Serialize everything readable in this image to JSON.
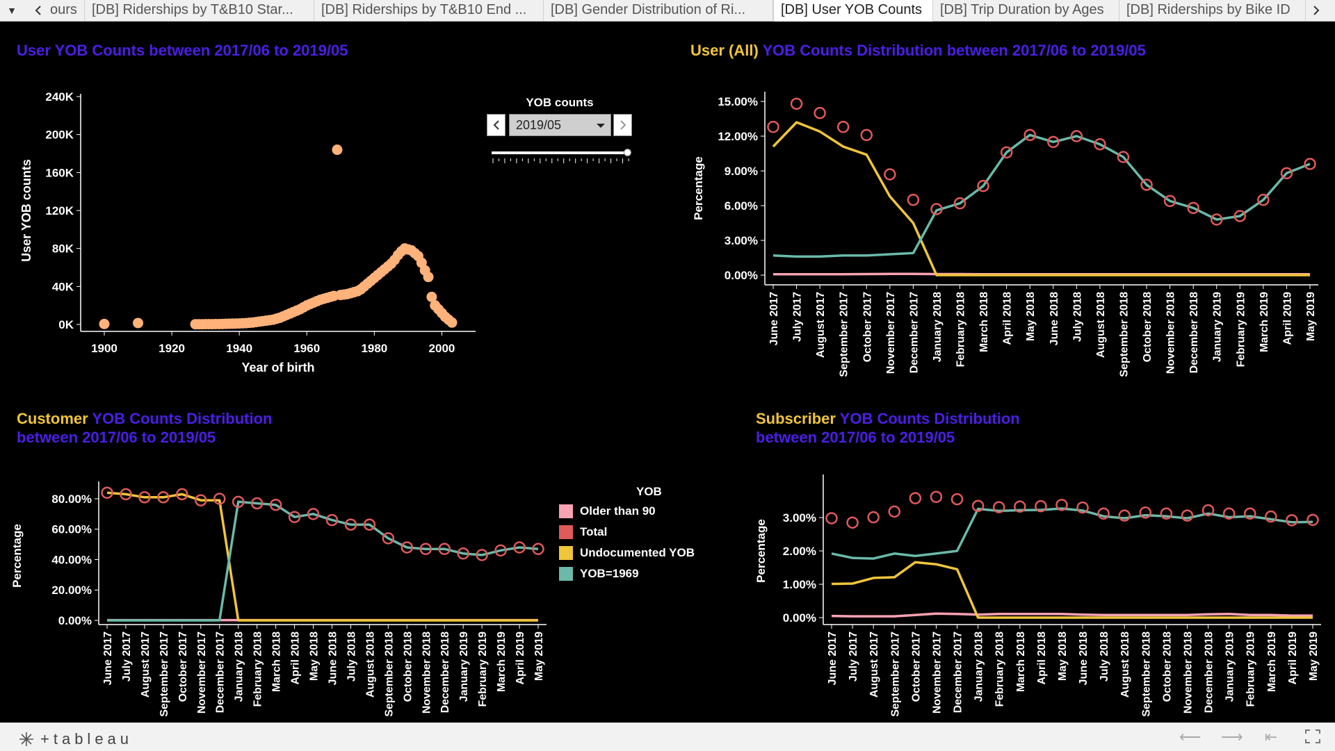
{
  "tabs": {
    "items": [
      "ours",
      "[DB] Riderships by T&B10 Star...",
      "[DB] Riderships by T&B10 End ...",
      "[DB] Gender Distribution of Ri...",
      "[DB] User YOB Counts",
      "[DB] Trip Duration by Ages",
      "[DB] Riderships by Bike ID"
    ]
  },
  "titles": {
    "scatter": "User YOB Counts between 2017/06 to 2019/05",
    "user_hl": "User (All)",
    "user_rest": " YOB Counts Distribution between 2017/06 to 2019/05",
    "customer_hl": "Customer",
    "customer_rest": " YOB Counts Distribution",
    "customer_line2": "between 2017/06 to 2019/05",
    "subscriber_hl": "Subscriber",
    "subscriber_rest": " YOB Counts Distribution",
    "subscriber_line2": "between 2017/06 to 2019/05"
  },
  "filter": {
    "label": "YOB counts",
    "value": "2019/05",
    "level": 1.0
  },
  "legend": {
    "title": "YOB",
    "items": [
      {
        "label": "Older than 90",
        "color": "#f9a2b2"
      },
      {
        "label": "Total",
        "color": "#e05a5a"
      },
      {
        "label": "Undocumented YOB",
        "color": "#f0c53a"
      },
      {
        "label": "YOB=1969",
        "color": "#6ab9a9"
      }
    ]
  },
  "colors": {
    "scatter": "#ffb27a",
    "older": "#f9a2b2",
    "total": "#e05a5a",
    "undoc": "#f0c53a",
    "yob1969": "#6ab9a9",
    "title": "#4b1ee6",
    "title_hl": "#f0c53a"
  },
  "chart_data": [
    {
      "type": "scatter",
      "title": "User YOB Counts between 2017/06 to 2019/05",
      "xlabel": "Year of birth",
      "ylabel": "User YOB counts",
      "xlim": [
        1893,
        2010
      ],
      "ylim": [
        0,
        240000
      ],
      "xticks": [
        "1900",
        "1920",
        "1940",
        "1960",
        "1980",
        "2000"
      ],
      "yticks": [
        "0K",
        "40K",
        "80K",
        "120K",
        "160K",
        "200K",
        "240K"
      ],
      "x": [
        1900,
        1910,
        1927,
        1928,
        1929,
        1930,
        1931,
        1932,
        1933,
        1934,
        1935,
        1936,
        1937,
        1938,
        1939,
        1940,
        1941,
        1942,
        1943,
        1944,
        1945,
        1946,
        1947,
        1948,
        1949,
        1950,
        1951,
        1952,
        1953,
        1954,
        1955,
        1956,
        1957,
        1958,
        1959,
        1960,
        1961,
        1962,
        1963,
        1964,
        1965,
        1966,
        1967,
        1968,
        1969,
        1970,
        1971,
        1972,
        1973,
        1974,
        1975,
        1976,
        1977,
        1978,
        1979,
        1980,
        1981,
        1982,
        1983,
        1984,
        1985,
        1986,
        1987,
        1988,
        1989,
        1990,
        1991,
        1992,
        1993,
        1994,
        1995,
        1996,
        1997,
        1998,
        1999,
        2000,
        2001,
        2002,
        2003
      ],
      "y": [
        500,
        1500,
        200,
        200,
        200,
        300,
        300,
        300,
        400,
        400,
        500,
        600,
        700,
        800,
        900,
        1000,
        1200,
        1400,
        1700,
        2000,
        2500,
        3000,
        3500,
        4000,
        4500,
        5000,
        6000,
        7000,
        8500,
        10000,
        11500,
        13000,
        14500,
        16000,
        18000,
        20000,
        21500,
        23000,
        24500,
        26000,
        27000,
        28000,
        29000,
        30000,
        184000,
        31000,
        31500,
        32000,
        33000,
        34000,
        35000,
        37000,
        40000,
        43000,
        46000,
        49000,
        52000,
        55000,
        58000,
        61000,
        64000,
        68000,
        73000,
        77000,
        80000,
        79000,
        78000,
        75000,
        72000,
        65000,
        57000,
        50000,
        29000,
        20000,
        16000,
        12000,
        8000,
        5000,
        2000
      ]
    },
    {
      "type": "line",
      "title": "User (All) YOB Counts Distribution between 2017/06 to 2019/05",
      "ylabel": "Percentage",
      "ylim": [
        0,
        0.15
      ],
      "yticks": [
        "0.00%",
        "3.00%",
        "6.00%",
        "9.00%",
        "12.00%",
        "15.00%"
      ],
      "categories": [
        "June 2017",
        "July 2017",
        "August 2017",
        "September 2017",
        "October 2017",
        "November 2017",
        "December 2017",
        "January 2018",
        "February 2018",
        "March 2018",
        "April 2018",
        "May 2018",
        "June 2018",
        "July 2018",
        "August 2018",
        "September 2018",
        "October 2018",
        "November 2018",
        "December 2018",
        "January 2019",
        "February 2019",
        "March 2019",
        "April 2019",
        "May 2019"
      ],
      "series": [
        {
          "name": "Older than 90",
          "values": [
            0.0008,
            0.0008,
            0.0008,
            0.0008,
            0.0009,
            0.001,
            0.001,
            0.0009,
            0.0009,
            0.0008,
            0.0008,
            0.0008,
            0.0008,
            0.0008,
            0.0008,
            0.0008,
            0.0008,
            0.0008,
            0.0008,
            0.0008,
            0.0008,
            0.0008,
            0.0008,
            0.0008
          ]
        },
        {
          "name": "Total",
          "values": [
            0.128,
            0.148,
            0.14,
            0.128,
            0.121,
            0.087,
            0.065,
            0.057,
            0.062,
            0.077,
            0.106,
            0.121,
            0.115,
            0.12,
            0.113,
            0.102,
            0.078,
            0.064,
            0.058,
            0.048,
            0.051,
            0.065,
            0.088,
            0.096
          ]
        },
        {
          "name": "Undocumented YOB",
          "values": [
            0.111,
            0.132,
            0.124,
            0.111,
            0.104,
            0.068,
            0.045,
            0.0,
            0.0,
            0.0,
            0.0,
            0.0,
            0.0,
            0.0,
            0.0,
            0.0,
            0.0,
            0.0,
            0.0,
            0.0,
            0.0,
            0.0,
            0.0,
            0.0
          ]
        },
        {
          "name": "YOB=1969",
          "values": [
            0.017,
            0.016,
            0.016,
            0.017,
            0.017,
            0.018,
            0.019,
            0.056,
            0.062,
            0.077,
            0.106,
            0.121,
            0.115,
            0.12,
            0.113,
            0.102,
            0.078,
            0.064,
            0.058,
            0.048,
            0.051,
            0.065,
            0.088,
            0.096
          ]
        }
      ]
    },
    {
      "type": "line",
      "title": "Customer YOB Counts Distribution between 2017/06 to 2019/05",
      "ylabel": "Percentage",
      "ylim": [
        0,
        0.85
      ],
      "yticks": [
        "0.00%",
        "20.00%",
        "40.00%",
        "60.00%",
        "80.00%"
      ],
      "categories": [
        "June 2017",
        "July 2017",
        "August 2017",
        "September 2017",
        "October 2017",
        "November 2017",
        "December 2017",
        "January 2018",
        "February 2018",
        "March 2018",
        "April 2018",
        "May 2018",
        "June 2018",
        "July 2018",
        "August 2018",
        "September 2018",
        "October 2018",
        "November 2018",
        "December 2018",
        "January 2019",
        "February 2019",
        "March 2019",
        "April 2019",
        "May 2019"
      ],
      "series": [
        {
          "name": "Older than 90",
          "values": [
            0.002,
            0.002,
            0.002,
            0.002,
            0.002,
            0.002,
            0.002,
            0.002,
            0.002,
            0.002,
            0.002,
            0.002,
            0.002,
            0.002,
            0.002,
            0.002,
            0.002,
            0.002,
            0.002,
            0.002,
            0.002,
            0.002,
            0.002,
            0.002
          ]
        },
        {
          "name": "Total",
          "values": [
            0.84,
            0.83,
            0.81,
            0.81,
            0.83,
            0.79,
            0.8,
            0.78,
            0.77,
            0.76,
            0.68,
            0.7,
            0.66,
            0.63,
            0.63,
            0.54,
            0.48,
            0.47,
            0.47,
            0.44,
            0.43,
            0.46,
            0.48,
            0.47
          ]
        },
        {
          "name": "Undocumented YOB",
          "values": [
            0.84,
            0.83,
            0.81,
            0.81,
            0.83,
            0.79,
            0.79,
            0.0,
            0.0,
            0.0,
            0.0,
            0.0,
            0.0,
            0.0,
            0.0,
            0.0,
            0.0,
            0.0,
            0.0,
            0.0,
            0.0,
            0.0,
            0.0,
            0.0
          ]
        },
        {
          "name": "YOB=1969",
          "values": [
            0.0,
            0.0,
            0.0,
            0.0,
            0.0,
            0.0,
            0.0,
            0.78,
            0.77,
            0.76,
            0.68,
            0.7,
            0.66,
            0.63,
            0.63,
            0.54,
            0.48,
            0.47,
            0.47,
            0.44,
            0.43,
            0.46,
            0.48,
            0.47
          ]
        }
      ]
    },
    {
      "type": "line",
      "title": "Subscriber YOB Counts Distribution between 2017/06 to 2019/05",
      "ylabel": "Percentage",
      "ylim": [
        0,
        0.04
      ],
      "yticks": [
        "0.00%",
        "1.00%",
        "2.00%",
        "3.00%"
      ],
      "categories": [
        "June 2017",
        "July 2017",
        "August 2017",
        "September 2017",
        "October 2017",
        "November 2017",
        "December 2017",
        "January 2018",
        "February 2018",
        "March 2018",
        "April 2018",
        "May 2018",
        "June 2018",
        "July 2018",
        "August 2018",
        "September 2018",
        "October 2018",
        "November 2018",
        "December 2018",
        "January 2019",
        "February 2019",
        "March 2019",
        "April 2019",
        "May 2019"
      ],
      "series": [
        {
          "name": "Older than 90",
          "values": [
            0.0005,
            0.0004,
            0.0004,
            0.0004,
            0.0008,
            0.0012,
            0.0011,
            0.0009,
            0.0011,
            0.0011,
            0.0011,
            0.0011,
            0.0009,
            0.0008,
            0.0008,
            0.0008,
            0.0008,
            0.0008,
            0.001,
            0.0011,
            0.0008,
            0.0008,
            0.0006,
            0.0006
          ]
        },
        {
          "name": "Total",
          "values": [
            0.0298,
            0.0285,
            0.0301,
            0.0318,
            0.0358,
            0.0362,
            0.0355,
            0.0335,
            0.0331,
            0.0333,
            0.0334,
            0.0338,
            0.033,
            0.0312,
            0.0306,
            0.0315,
            0.0312,
            0.0306,
            0.0322,
            0.0312,
            0.0312,
            0.0303,
            0.0292,
            0.0293
          ]
        },
        {
          "name": "Undocumented YOB",
          "values": [
            0.0101,
            0.0102,
            0.0119,
            0.0121,
            0.0166,
            0.016,
            0.0145,
            0.0,
            0.0,
            0.0,
            0.0,
            0.0,
            0.0,
            0.0,
            0.0,
            0.0,
            0.0,
            0.0,
            0.0,
            0.0,
            0.0,
            0.0,
            0.0,
            0.0
          ]
        },
        {
          "name": "YOB=1969",
          "values": [
            0.0192,
            0.0179,
            0.0177,
            0.0192,
            0.0185,
            0.0192,
            0.02,
            0.0326,
            0.032,
            0.0322,
            0.0323,
            0.0327,
            0.0321,
            0.0304,
            0.0298,
            0.0307,
            0.0304,
            0.0298,
            0.0312,
            0.0301,
            0.0304,
            0.0295,
            0.0286,
            0.0287
          ]
        }
      ]
    }
  ],
  "footer": {
    "brand": "+tableau"
  }
}
